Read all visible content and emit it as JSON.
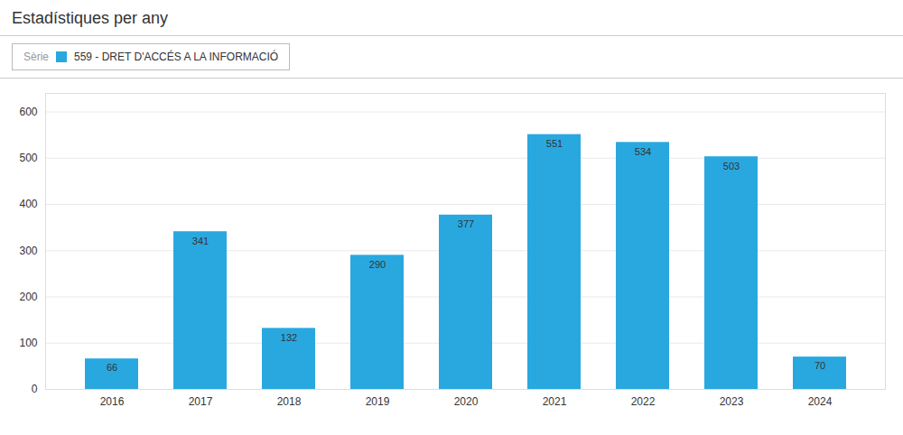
{
  "chart_data": {
    "type": "bar",
    "title": "Estadístiques per any",
    "legend_title": "Sèrie",
    "categories": [
      "2016",
      "2017",
      "2018",
      "2019",
      "2020",
      "2021",
      "2022",
      "2023",
      "2024"
    ],
    "series": [
      {
        "name": "559 - DRET D'ACCÉS A LA INFORMACIÓ",
        "color": "#29a8e0",
        "values": [
          66,
          341,
          132,
          290,
          377,
          551,
          534,
          503,
          70
        ]
      }
    ],
    "ylim": [
      0,
      640
    ],
    "yticks": [
      0,
      100,
      200,
      300,
      400,
      500,
      600
    ],
    "grid": true,
    "legend": "top-left",
    "data_labels": true
  }
}
